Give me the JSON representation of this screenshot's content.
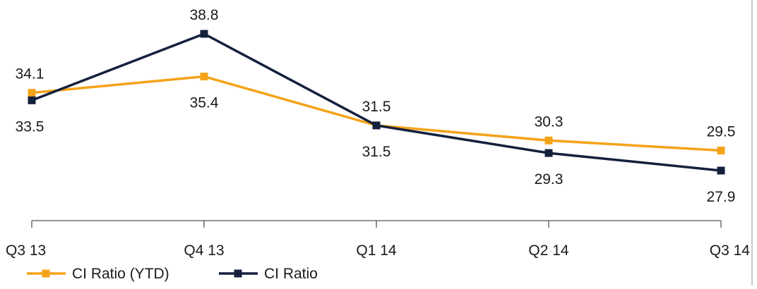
{
  "chart_data": {
    "type": "line",
    "categories": [
      "Q3 13",
      "Q4 13",
      "Q1 14",
      "Q2 14",
      "Q3 14"
    ],
    "series": [
      {
        "name": "CI Ratio (YTD)",
        "color": "#f5a31a",
        "values": [
          34.1,
          35.4,
          31.5,
          30.3,
          29.5
        ],
        "labels": [
          "34.1",
          "35.4",
          "31.5",
          "30.3",
          "29.5"
        ],
        "label_pos": [
          "above",
          "below",
          "above",
          "above",
          "above"
        ]
      },
      {
        "name": "CI Ratio",
        "color": "#14213d",
        "values": [
          33.5,
          38.8,
          31.5,
          29.3,
          27.9
        ],
        "labels": [
          "33.5",
          "38.8",
          "31.5",
          "29.3",
          "27.9"
        ],
        "label_pos": [
          "below",
          "above",
          "below",
          "below",
          "below"
        ]
      }
    ],
    "title": "",
    "xlabel": "",
    "ylabel": "",
    "ylim": [
      25,
      41
    ],
    "grid": false,
    "legend_position": "bottom-left"
  }
}
